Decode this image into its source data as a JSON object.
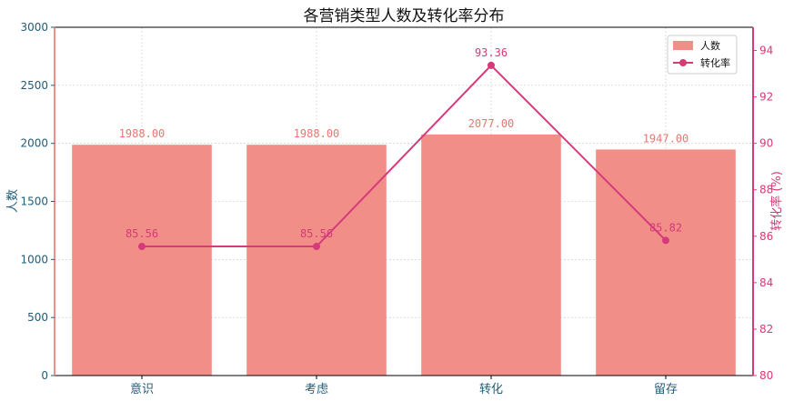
{
  "chart_data": {
    "type": "bar",
    "title": "各营销类型人数及转化率分布",
    "categories": [
      "意识",
      "考虑",
      "转化",
      "留存"
    ],
    "series": [
      {
        "name": "人数",
        "type": "bar",
        "axis": "left",
        "values": [
          1988,
          1988,
          2077,
          1947
        ],
        "labels": [
          "1988.00",
          "1988.00",
          "2077.00",
          "1947.00"
        ],
        "color": "#f28e88"
      },
      {
        "name": "转化率",
        "type": "line",
        "axis": "right",
        "values": [
          85.56,
          85.56,
          93.36,
          85.82
        ],
        "labels": [
          "85.56",
          "85.56",
          "93.36",
          "85.82"
        ],
        "color": "#d63a7a"
      }
    ],
    "ylabel_left": "人数",
    "ylabel_right": "转化率 (%)",
    "ylim_left": [
      0,
      3000
    ],
    "ylim_right": [
      80,
      95
    ],
    "yticks_left": [
      "0",
      "500",
      "1000",
      "1500",
      "2000",
      "2500",
      "3000"
    ],
    "yticks_right": [
      "80",
      "82",
      "84",
      "86",
      "88",
      "90",
      "92",
      "94"
    ],
    "grid": true,
    "legend_position": "top-right",
    "colors": {
      "left_axis": "#1f5c7a",
      "right_axis": "#d63a7a",
      "left_spine": "#f28e88",
      "grid": "#c8c8c8"
    }
  }
}
